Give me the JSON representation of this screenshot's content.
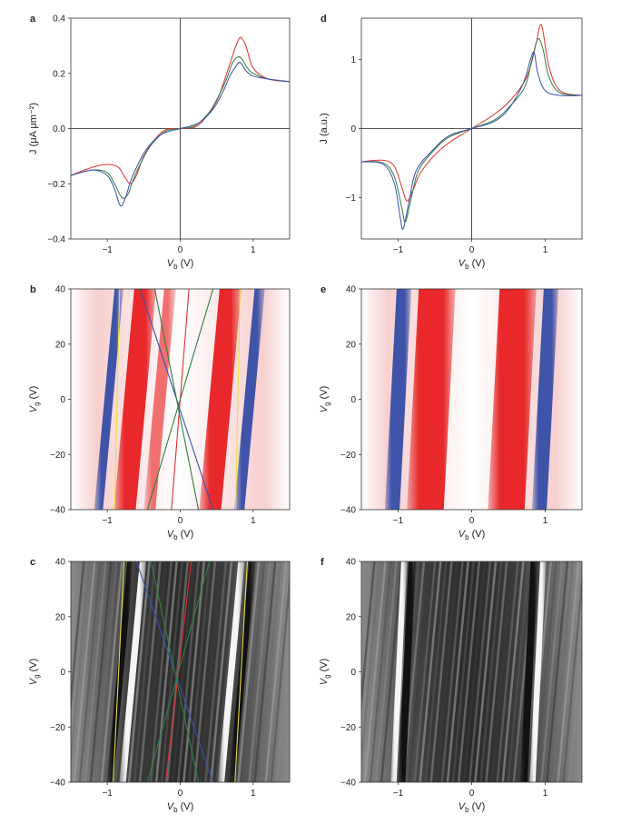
{
  "panels": [
    {
      "id": "a",
      "label": "a",
      "type": "line",
      "xlabel": "V",
      "xlabel_sub": "b",
      "xlabel_unit": " (V)",
      "ylabel": "J (μA μm⁻²)",
      "xlim": [
        -1.5,
        1.5
      ],
      "ylim": [
        -0.4,
        0.4
      ],
      "xticks": [
        "−1",
        "0",
        "1"
      ],
      "xtick_vals": [
        -1,
        0,
        1
      ],
      "yticks": [
        "0.4",
        "0.2",
        "0.0",
        "−0.2",
        "−0.4"
      ],
      "ytick_vals": [
        0.4,
        0.2,
        0,
        -0.2,
        -0.4
      ]
    },
    {
      "id": "b",
      "label": "b",
      "type": "heatmap",
      "xlabel": "V",
      "xlabel_sub": "b",
      "xlabel_unit": " (V)",
      "ylabel": "V",
      "ylabel_sub": "g",
      "ylabel_unit": " (V)",
      "xlim": [
        -1.5,
        1.5
      ],
      "ylim": [
        -40,
        40
      ],
      "xticks": [
        "−1",
        "0",
        "1"
      ],
      "xtick_vals": [
        -1,
        0,
        1
      ],
      "yticks": [
        "40",
        "20",
        "0",
        "−20",
        "−40"
      ],
      "ytick_vals": [
        40,
        20,
        0,
        -20,
        -40
      ]
    },
    {
      "id": "c",
      "label": "c",
      "type": "heatmap",
      "xlabel": "V",
      "xlabel_sub": "b",
      "xlabel_unit": " (V)",
      "ylabel": "V",
      "ylabel_sub": "g",
      "ylabel_unit": " (V)",
      "xlim": [
        -1.5,
        1.5
      ],
      "ylim": [
        -40,
        40
      ],
      "xticks": [
        "−1",
        "0",
        "1"
      ],
      "xtick_vals": [
        -1,
        0,
        1
      ],
      "yticks": [
        "40",
        "20",
        "0",
        "−20",
        "−40"
      ],
      "ytick_vals": [
        40,
        20,
        0,
        -20,
        -40
      ]
    },
    {
      "id": "d",
      "label": "d",
      "type": "line",
      "xlabel": "V",
      "xlabel_sub": "b",
      "xlabel_unit": " (V)",
      "ylabel": "J (a.u.)",
      "xlim": [
        -1.5,
        1.5
      ],
      "ylim": [
        -1.6,
        1.6
      ],
      "xticks": [
        "−1",
        "0",
        "1"
      ],
      "xtick_vals": [
        -1,
        0,
        1
      ],
      "yticks": [
        "1",
        "0",
        "−1"
      ],
      "ytick_vals": [
        1,
        0,
        -1
      ]
    },
    {
      "id": "e",
      "label": "e",
      "type": "heatmap",
      "xlabel": "V",
      "xlabel_sub": "b",
      "xlabel_unit": " (V)",
      "ylabel": "V",
      "ylabel_sub": "g",
      "ylabel_unit": " (V)",
      "xlim": [
        -1.5,
        1.5
      ],
      "ylim": [
        -40,
        40
      ],
      "xticks": [
        "−1",
        "0",
        "1"
      ],
      "xtick_vals": [
        -1,
        0,
        1
      ],
      "yticks": [
        "40",
        "20",
        "0",
        "−20",
        "−40"
      ],
      "ytick_vals": [
        40,
        20,
        0,
        -20,
        -40
      ]
    },
    {
      "id": "f",
      "label": "f",
      "type": "heatmap",
      "xlabel": "V",
      "xlabel_sub": "b",
      "xlabel_unit": " (V)",
      "ylabel": "V",
      "ylabel_sub": "g",
      "ylabel_unit": " (V)",
      "xlim": [
        -1.5,
        1.5
      ],
      "ylim": [
        -40,
        40
      ],
      "xticks": [
        "−1",
        "0",
        "1"
      ],
      "xtick_vals": [
        -1,
        0,
        1
      ],
      "yticks": [
        "40",
        "20",
        "0",
        "−20",
        "−40"
      ],
      "ytick_vals": [
        40,
        20,
        0,
        -20,
        -40
      ]
    }
  ],
  "chart_data": [
    {
      "panel": "a",
      "type": "line",
      "xlim": [
        -1.5,
        1.5
      ],
      "ylim": [
        -0.4,
        0.4
      ],
      "series": [
        {
          "color": "#e03030",
          "x": [
            -1.5,
            -1.2,
            -1.0,
            -0.85,
            -0.75,
            -0.68,
            -0.6,
            -0.5,
            -0.35,
            -0.2,
            0,
            0.2,
            0.35,
            0.5,
            0.6,
            0.7,
            0.78,
            0.83,
            0.9,
            1.0,
            1.2,
            1.5
          ],
          "y": [
            -0.17,
            -0.14,
            -0.13,
            -0.14,
            -0.18,
            -0.2,
            -0.17,
            -0.1,
            -0.04,
            -0.005,
            0,
            0.005,
            0.04,
            0.1,
            0.17,
            0.25,
            0.31,
            0.33,
            0.3,
            0.22,
            0.18,
            0.17
          ]
        },
        {
          "color": "#2f7f3f",
          "x": [
            -1.5,
            -1.2,
            -1.0,
            -0.9,
            -0.8,
            -0.72,
            -0.65,
            -0.55,
            -0.4,
            -0.2,
            0,
            0.2,
            0.4,
            0.55,
            0.65,
            0.72,
            0.8,
            0.85,
            0.92,
            1.0,
            1.2,
            1.5
          ],
          "y": [
            -0.17,
            -0.15,
            -0.16,
            -0.2,
            -0.25,
            -0.24,
            -0.19,
            -0.13,
            -0.06,
            -0.01,
            0,
            0.01,
            0.06,
            0.13,
            0.19,
            0.24,
            0.26,
            0.25,
            0.22,
            0.2,
            0.18,
            0.17
          ]
        },
        {
          "color": "#3a4fb0",
          "x": [
            -1.5,
            -1.2,
            -1.0,
            -0.9,
            -0.82,
            -0.75,
            -0.68,
            -0.58,
            -0.45,
            -0.25,
            0,
            0.25,
            0.45,
            0.58,
            0.68,
            0.75,
            0.82,
            0.9,
            1.0,
            1.2,
            1.5
          ],
          "y": [
            -0.17,
            -0.15,
            -0.17,
            -0.22,
            -0.28,
            -0.25,
            -0.19,
            -0.13,
            -0.07,
            -0.02,
            0,
            0.02,
            0.07,
            0.13,
            0.19,
            0.22,
            0.24,
            0.21,
            0.19,
            0.18,
            0.17
          ]
        }
      ]
    },
    {
      "panel": "d",
      "type": "line",
      "xlim": [
        -1.5,
        1.5
      ],
      "ylim": [
        -1.6,
        1.6
      ],
      "series": [
        {
          "color": "#e03030",
          "x": [
            -1.5,
            -1.2,
            -1.05,
            -0.95,
            -0.88,
            -0.8,
            -0.7,
            -0.5,
            -0.3,
            0,
            0.3,
            0.5,
            0.7,
            0.8,
            0.88,
            0.95,
            1.05,
            1.2,
            1.5
          ],
          "y": [
            -0.48,
            -0.46,
            -0.55,
            -0.85,
            -1.05,
            -0.9,
            -0.65,
            -0.38,
            -0.2,
            0,
            0.2,
            0.38,
            0.65,
            0.9,
            1.25,
            1.5,
            0.9,
            0.55,
            0.48
          ]
        },
        {
          "color": "#2f7f3f",
          "x": [
            -1.5,
            -1.2,
            -1.05,
            -0.95,
            -0.9,
            -0.82,
            -0.72,
            -0.5,
            -0.3,
            0,
            0.3,
            0.5,
            0.72,
            0.82,
            0.9,
            0.97,
            1.05,
            1.2,
            1.5
          ],
          "y": [
            -0.48,
            -0.5,
            -0.7,
            -1.15,
            -1.35,
            -1.0,
            -0.6,
            -0.3,
            -0.12,
            0,
            0.12,
            0.3,
            0.6,
            1.0,
            1.3,
            1.15,
            0.75,
            0.52,
            0.48
          ]
        },
        {
          "color": "#3a4fb0",
          "x": [
            -1.5,
            -1.2,
            -1.05,
            -0.97,
            -0.93,
            -0.85,
            -0.75,
            -0.5,
            -0.3,
            0,
            0.3,
            0.5,
            0.7,
            0.8,
            0.85,
            0.9,
            1.0,
            1.2,
            1.5
          ],
          "y": [
            -0.48,
            -0.52,
            -0.8,
            -1.3,
            -1.45,
            -1.05,
            -0.6,
            -0.28,
            -0.1,
            0,
            0.1,
            0.28,
            0.65,
            1.0,
            1.1,
            0.8,
            0.55,
            0.48,
            0.48
          ]
        }
      ]
    },
    {
      "panel": "b",
      "type": "heatmap",
      "xlim": [
        -1.5,
        1.5
      ],
      "ylim": [
        -40,
        40
      ],
      "palette": "red-white-blue",
      "columns": [
        {
          "xc": -0.98,
          "w": 0.12,
          "color": "#3f54a8",
          "skew": 0.0035
        },
        {
          "xc": -0.62,
          "w": 0.3,
          "color": "#e8282a",
          "skew": 0.0035
        },
        {
          "xc": -0.28,
          "w": 0.16,
          "color": "#f07070",
          "skew": 0.0035
        },
        {
          "xc": 0.55,
          "w": 0.3,
          "color": "#e8282a",
          "skew": 0.0035
        },
        {
          "xc": 0.95,
          "w": 0.14,
          "color": "#3f54a8",
          "skew": 0.0035
        }
      ],
      "overlay_lines": [
        {
          "color": "#e8e040",
          "x_at_top": -0.83,
          "x_at_bottom": -0.9
        },
        {
          "color": "#e8e040",
          "x_at_top": 0.82,
          "x_at_bottom": 0.76
        },
        {
          "color": "#3a4fb0",
          "x_at_top": -0.55,
          "x_at_bottom": 0.45
        },
        {
          "color": "#e03030",
          "x_at_top": 0.12,
          "x_at_bottom": -0.12
        },
        {
          "color": "#2f7f3f",
          "x_at_top": -0.35,
          "x_at_bottom": 0.25
        },
        {
          "color": "#2f7f3f",
          "x_at_top": 0.45,
          "x_at_bottom": -0.45
        }
      ]
    },
    {
      "panel": "e",
      "type": "heatmap",
      "xlim": [
        -1.5,
        1.5
      ],
      "ylim": [
        -40,
        40
      ],
      "palette": "red-white-blue",
      "columns": [
        {
          "xc": -1.0,
          "w": 0.2,
          "color": "#3f54a8",
          "skew": 0.002
        },
        {
          "xc": -0.55,
          "w": 0.5,
          "color": "#e8282a",
          "skew": 0.002
        },
        {
          "xc": 0.55,
          "w": 0.5,
          "color": "#e8282a",
          "skew": 0.002
        },
        {
          "xc": 1.0,
          "w": 0.2,
          "color": "#3f54a8",
          "skew": 0.002
        }
      ],
      "overlay_lines": []
    },
    {
      "panel": "c",
      "type": "heatmap",
      "xlim": [
        -1.5,
        1.5
      ],
      "ylim": [
        -40,
        40
      ],
      "palette": "grayscale",
      "columns": [
        {
          "xc": -0.82,
          "w": 0.09,
          "color": "#111111",
          "skew": 0.0035
        },
        {
          "xc": -0.65,
          "w": 0.09,
          "color": "#f5f5f5",
          "skew": 0.0035
        },
        {
          "xc": 0.7,
          "w": 0.09,
          "color": "#f5f5f5",
          "skew": 0.0035
        },
        {
          "xc": 0.85,
          "w": 0.09,
          "color": "#111111",
          "skew": 0.0035
        }
      ],
      "overlay_lines": [
        {
          "color": "#e8e040",
          "x_at_top": -0.77,
          "x_at_bottom": -0.92
        },
        {
          "color": "#e8e040",
          "x_at_top": 0.92,
          "x_at_bottom": 0.75
        },
        {
          "color": "#3a4fb0",
          "x_at_top": -0.6,
          "x_at_bottom": 0.45
        },
        {
          "color": "#e03030",
          "x_at_top": 0.15,
          "x_at_bottom": -0.2
        },
        {
          "color": "#2f7f3f",
          "x_at_top": -0.4,
          "x_at_bottom": 0.25
        },
        {
          "color": "#2f7f3f",
          "x_at_top": 0.4,
          "x_at_bottom": -0.45
        }
      ]
    },
    {
      "panel": "f",
      "type": "heatmap",
      "xlim": [
        -1.5,
        1.5
      ],
      "ylim": [
        -40,
        40
      ],
      "palette": "grayscale",
      "columns": [
        {
          "xc": -0.99,
          "w": 0.08,
          "color": "#f5f5f5",
          "skew": 0.0018
        },
        {
          "xc": -0.88,
          "w": 0.1,
          "color": "#111111",
          "skew": 0.0018
        },
        {
          "xc": 0.78,
          "w": 0.1,
          "color": "#111111",
          "skew": 0.0018
        },
        {
          "xc": 0.9,
          "w": 0.08,
          "color": "#f5f5f5",
          "skew": 0.0018
        }
      ],
      "overlay_lines": []
    }
  ]
}
